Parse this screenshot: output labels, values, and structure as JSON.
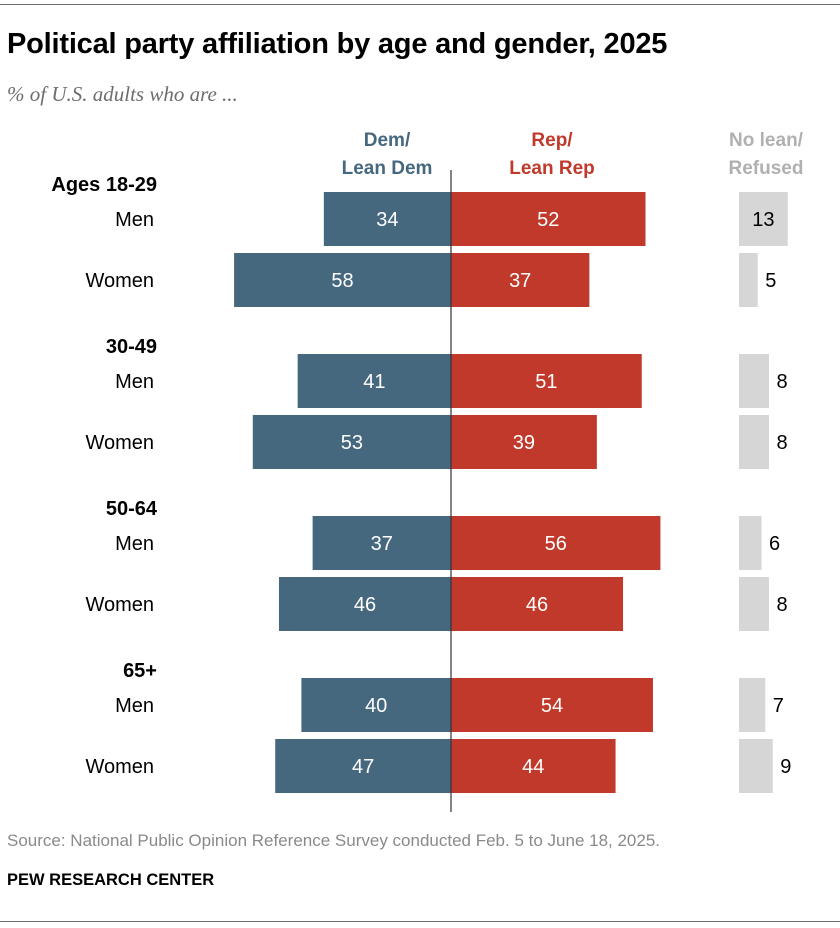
{
  "title": "Political party affiliation by age and gender, 2025",
  "subtitle": "% of U.S. adults who are ...",
  "columns": {
    "dem": {
      "line1": "Dem/",
      "line2": "Lean Dem",
      "color": "#46687f"
    },
    "rep": {
      "line1": "Rep/",
      "line2": "Lean Rep",
      "color": "#c0392b"
    },
    "none": {
      "line1": "No lean/",
      "line2": "Refused",
      "color": "#d6d6d6",
      "text_color": "#b0b0b0"
    }
  },
  "source": "Source: National Public Opinion Reference Survey conducted Feb. 5 to June 18, 2025.",
  "brand": "PEW RESEARCH CENTER",
  "chart_data": {
    "type": "bar",
    "orientation": "horizontal-diverging",
    "title": "Political party affiliation by age and gender, 2025",
    "subtitle": "% of U.S. adults who are ...",
    "series": [
      {
        "name": "Dem/Lean Dem",
        "color": "#46687f"
      },
      {
        "name": "Rep/Lean Rep",
        "color": "#c0392b"
      },
      {
        "name": "No lean/Refused",
        "color": "#d6d6d6"
      }
    ],
    "groups": [
      {
        "label": "Ages 18-29",
        "rows": [
          {
            "label": "Men",
            "dem": 34,
            "rep": 52,
            "none": 13
          },
          {
            "label": "Women",
            "dem": 58,
            "rep": 37,
            "none": 5
          }
        ]
      },
      {
        "label": "30-49",
        "rows": [
          {
            "label": "Men",
            "dem": 41,
            "rep": 51,
            "none": 8
          },
          {
            "label": "Women",
            "dem": 53,
            "rep": 39,
            "none": 8
          }
        ]
      },
      {
        "label": "50-64",
        "rows": [
          {
            "label": "Men",
            "dem": 37,
            "rep": 56,
            "none": 6
          },
          {
            "label": "Women",
            "dem": 46,
            "rep": 46,
            "none": 8
          }
        ]
      },
      {
        "label": "65+",
        "rows": [
          {
            "label": "Men",
            "dem": 40,
            "rep": 54,
            "none": 7
          },
          {
            "label": "Women",
            "dem": 47,
            "rep": 44,
            "none": 9
          }
        ]
      }
    ]
  }
}
